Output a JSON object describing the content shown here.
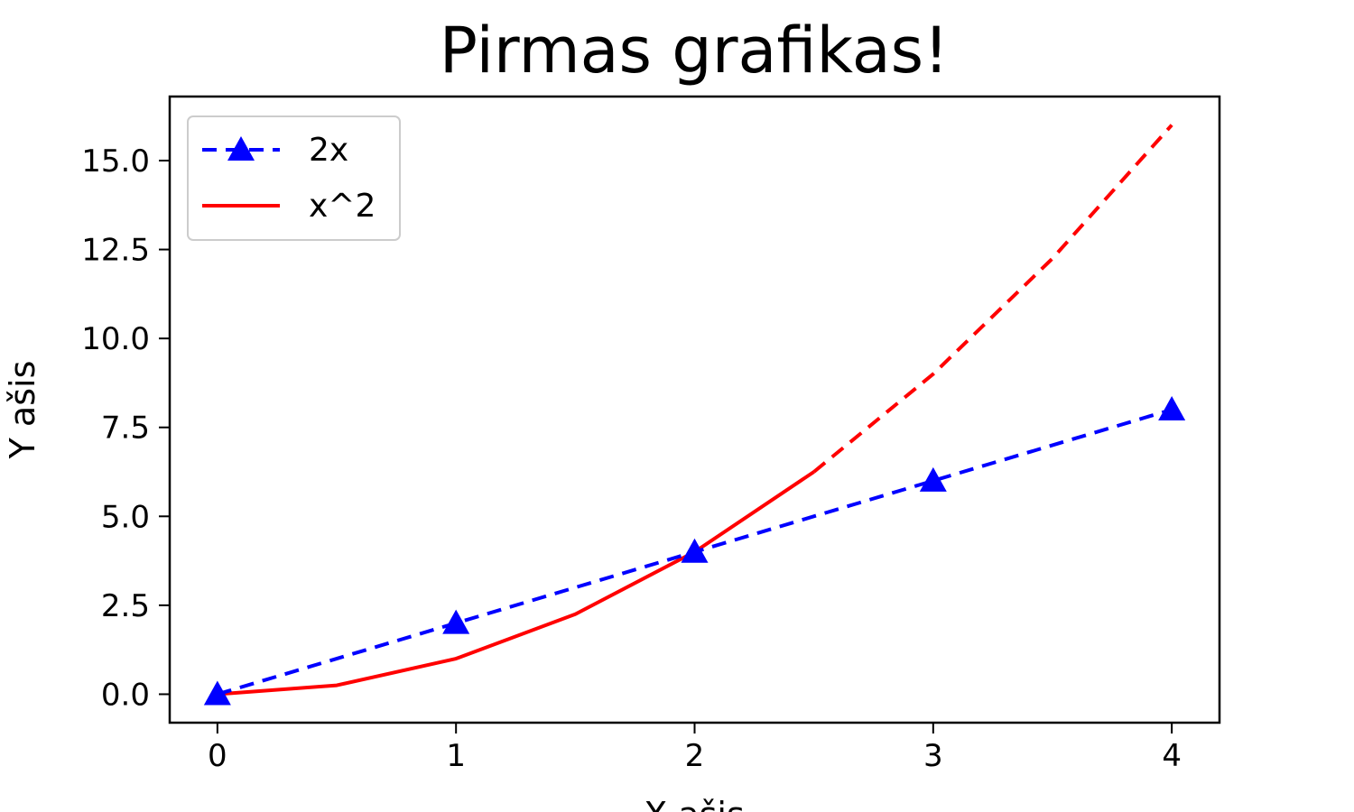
{
  "chart_data": {
    "type": "line",
    "title": "Pirmas grafikas!",
    "xlabel": "X ašis",
    "ylabel": "Y ašis",
    "xlim": [
      -0.2,
      4.2
    ],
    "ylim": [
      -0.8,
      16.8
    ],
    "xticks": [
      0,
      1,
      2,
      3,
      4
    ],
    "xtick_labels": [
      "0",
      "1",
      "2",
      "3",
      "4"
    ],
    "yticks": [
      0,
      2.5,
      5,
      7.5,
      10,
      12.5,
      15
    ],
    "ytick_labels": [
      "0.0",
      "2.5",
      "5.0",
      "7.5",
      "10.0",
      "12.5",
      "15.0"
    ],
    "grid": false,
    "legend_position": "top-left",
    "series": [
      {
        "name": "2x",
        "color": "#0000ff",
        "line_style": "dashed",
        "marker": "triangle",
        "x": [
          0,
          1,
          2,
          3,
          4
        ],
        "y": [
          0,
          2,
          4,
          6,
          8
        ]
      },
      {
        "name": "x^2",
        "color": "#ff0000",
        "line_style": "solid",
        "x": [
          0,
          0.5,
          1,
          1.5,
          2,
          2.5
        ],
        "y": [
          0,
          0.25,
          1,
          2.25,
          4,
          6.25
        ]
      },
      {
        "color": "#ff0000",
        "line_style": "dashed",
        "x": [
          2.5,
          3,
          3.5,
          4
        ],
        "y": [
          6.25,
          9,
          12.25,
          16
        ]
      }
    ]
  }
}
